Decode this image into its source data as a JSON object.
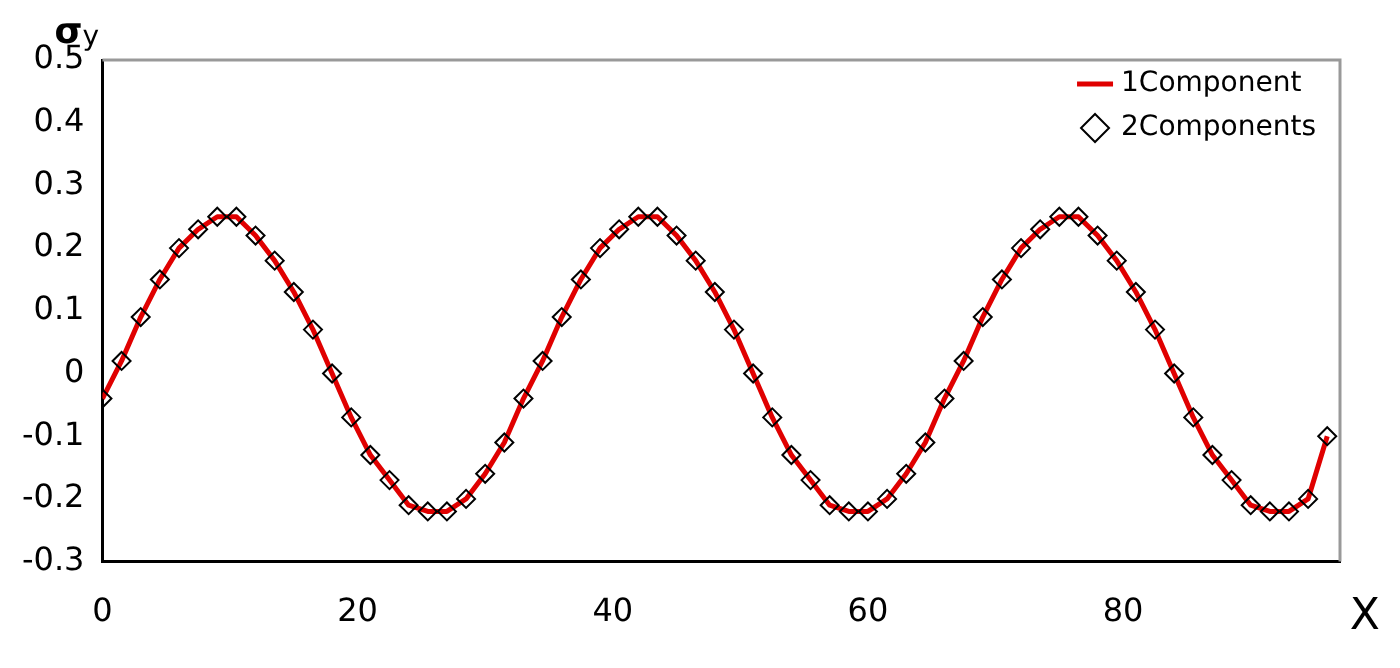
{
  "chart_data": {
    "type": "line",
    "xlabel": "X",
    "ylabel": "σ$_{y}$",
    "x": [
      0,
      1.5,
      3,
      4.5,
      6,
      7.5,
      9,
      10.5,
      12,
      13.5,
      15,
      16.5,
      18,
      19.5,
      21,
      22.5,
      24,
      25.5,
      27,
      28.5,
      30,
      31.5,
      33,
      34.5,
      36,
      37.5,
      39,
      40.5,
      42,
      43.5,
      45,
      46.5,
      48,
      49.5,
      51,
      52.5,
      54,
      55.5,
      57,
      58.5,
      60,
      61.5,
      63,
      64.5,
      66,
      67.5,
      69,
      70.5,
      72,
      73.5,
      75,
      76.5,
      78,
      79.5,
      81,
      82.5,
      84,
      85.5,
      87,
      88.5,
      90,
      91.5,
      93,
      94.5,
      96
    ],
    "series": [
      {
        "name": "1Component",
        "color": "#e00000",
        "marker": "none",
        "line_style": "solid",
        "values": [
          -0.04,
          0.02,
          0.09,
          0.15,
          0.2,
          0.23,
          0.25,
          0.25,
          0.22,
          0.18,
          0.13,
          0.07,
          0,
          -0.07,
          -0.13,
          -0.17,
          -0.21,
          -0.22,
          -0.22,
          -0.2,
          -0.16,
          -0.11,
          -0.04,
          0.02,
          0.09,
          0.15,
          0.2,
          0.23,
          0.25,
          0.25,
          0.22,
          0.18,
          0.13,
          0.07,
          0,
          -0.07,
          -0.13,
          -0.17,
          -0.21,
          -0.22,
          -0.22,
          -0.2,
          -0.16,
          -0.11,
          -0.04,
          0.02,
          0.09,
          0.15,
          0.2,
          0.23,
          0.25,
          0.25,
          0.22,
          0.18,
          0.13,
          0.07,
          0,
          -0.07,
          -0.13,
          -0.17,
          -0.21,
          -0.22,
          -0.22,
          -0.2,
          -0.1
        ]
      },
      {
        "name": "2Components",
        "type": "scatter",
        "color": "#000000",
        "marker": "diamond",
        "values": [
          -0.04,
          0.02,
          0.09,
          0.15,
          0.2,
          0.23,
          0.25,
          0.25,
          0.22,
          0.18,
          0.13,
          0.07,
          0,
          -0.07,
          -0.13,
          -0.17,
          -0.21,
          -0.22,
          -0.22,
          -0.2,
          -0.16,
          -0.11,
          -0.04,
          0.02,
          0.09,
          0.15,
          0.2,
          0.23,
          0.25,
          0.25,
          0.22,
          0.18,
          0.13,
          0.07,
          0,
          -0.07,
          -0.13,
          -0.17,
          -0.21,
          -0.22,
          -0.22,
          -0.2,
          -0.16,
          -0.11,
          -0.04,
          0.02,
          0.09,
          0.15,
          0.2,
          0.23,
          0.25,
          0.25,
          0.22,
          0.18,
          0.13,
          0.07,
          0,
          -0.07,
          -0.13,
          -0.17,
          -0.21,
          -0.22,
          -0.22,
          -0.2,
          -0.1
        ]
      }
    ],
    "xlim": [
      0,
      97
    ],
    "xticks": [
      0,
      20,
      40,
      60,
      80
    ],
    "ylim": [
      -0.3,
      0.5
    ],
    "yticks": [
      -0.3,
      -0.2,
      -0.1,
      0,
      0.1,
      0.2,
      0.3,
      0.4,
      0.5
    ],
    "grid": false,
    "legend": "top right"
  }
}
